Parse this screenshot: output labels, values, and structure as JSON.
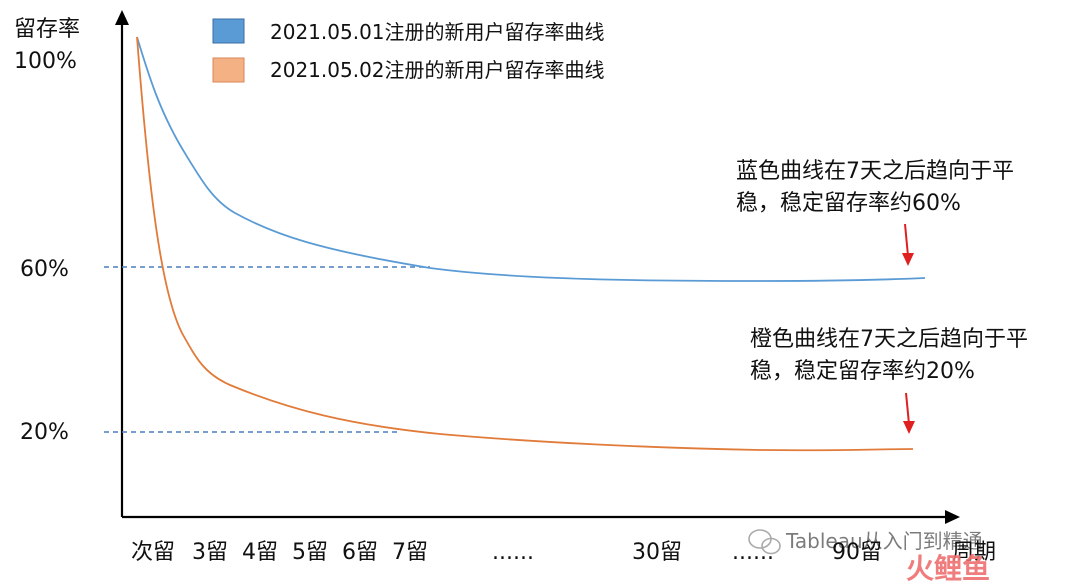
{
  "chart_data": {
    "type": "line",
    "ylabel": "留存率",
    "xlabel": "周期",
    "y_ticks": [
      {
        "label": "100%",
        "value": 100
      },
      {
        "label": "60%",
        "value": 60
      },
      {
        "label": "20%",
        "value": 20
      }
    ],
    "x_categories": [
      "次留",
      "3留",
      "4留",
      "5留",
      "6留",
      "7留",
      "......",
      "30留",
      "......",
      "90留"
    ],
    "legend": {
      "placement": "top-left"
    },
    "series": [
      {
        "name": "2021.05.01注册的新用户留存率曲线",
        "color": "#5b9bd5",
        "swatch_color": "#5b9bd5",
        "points": [
          [
            0,
            100
          ],
          [
            1,
            82
          ],
          [
            2,
            72
          ],
          [
            3,
            67
          ],
          [
            4,
            63
          ],
          [
            5,
            60
          ],
          [
            6,
            58
          ],
          [
            7,
            57
          ],
          [
            8,
            57
          ],
          [
            9,
            57.5
          ]
        ]
      },
      {
        "name": "2021.05.02注册的新用户留存率曲线",
        "color": "#e07b3a",
        "swatch_color": "#f4b183",
        "points": [
          [
            0,
            100
          ],
          [
            1,
            45
          ],
          [
            2,
            33
          ],
          [
            3,
            28
          ],
          [
            4,
            24
          ],
          [
            5,
            21
          ],
          [
            6,
            19
          ],
          [
            7,
            18
          ],
          [
            8,
            17
          ],
          [
            9,
            17.5
          ]
        ]
      }
    ],
    "reference_lines": [
      {
        "label": "60%",
        "value": 60,
        "style": "dashed"
      },
      {
        "label": "20%",
        "value": 20,
        "style": "dashed"
      }
    ],
    "annotations": [
      {
        "lines": [
          "蓝色曲线在7天之后趋向于平",
          "稳，稳定留存率约60%"
        ],
        "arrow_color": "#e02020"
      },
      {
        "lines": [
          "橙色曲线在7天之后趋向于平",
          "稳，稳定留存率约20%"
        ],
        "arrow_color": "#e02020"
      }
    ]
  },
  "watermark": {
    "text": "Tableau从入门到精通",
    "logo_text": "火鲤鱼"
  },
  "colors": {
    "axis": "#000000",
    "dashed": "#4a7ebb",
    "arrow": "#e02020"
  }
}
